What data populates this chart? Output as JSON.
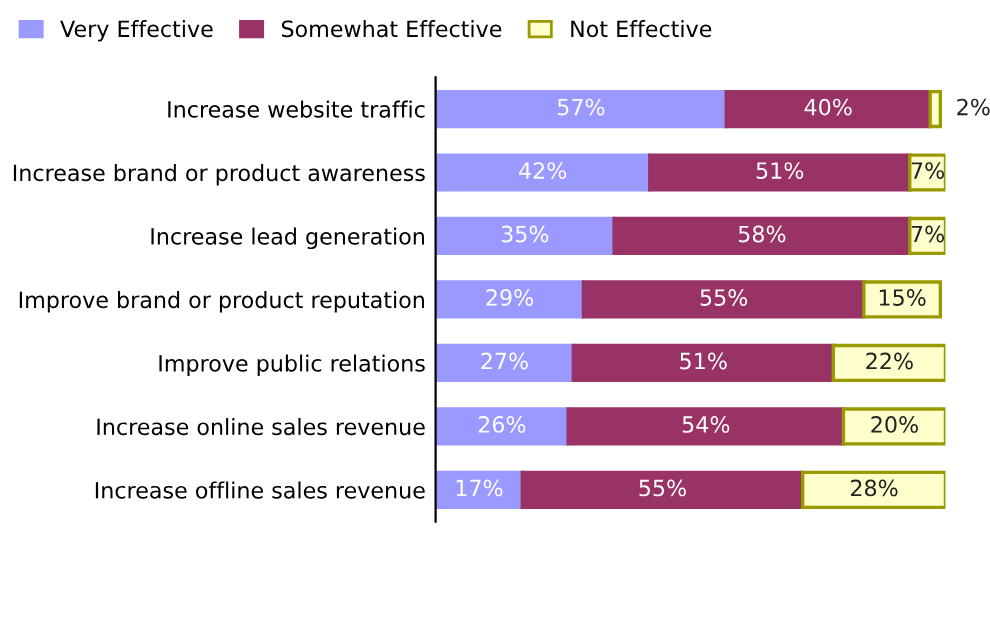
{
  "chart_data": {
    "type": "bar",
    "orientation": "horizontal",
    "stacked": true,
    "legend": "top left",
    "grid": false,
    "tick_labels": "y",
    "categories": [
      "Increase website traffic",
      "Increase brand or product awareness",
      "Increase lead generation",
      "Improve brand or product reputation",
      "Improve public relations",
      "Increase online sales revenue",
      "Increase offline sales revenue"
    ],
    "series": [
      {
        "name": "Very Effective",
        "color": "#9999ff",
        "values": [
          57,
          42,
          35,
          29,
          27,
          26,
          17
        ],
        "value_labels": [
          "57%",
          "42%",
          "35%",
          "29%",
          "27%",
          "26%",
          "17%"
        ]
      },
      {
        "name": "Somewhat Effective",
        "color": "#993366",
        "values": [
          40,
          51,
          58,
          55,
          51,
          54,
          55
        ],
        "value_labels": [
          "40%",
          "51%",
          "58%",
          "55%",
          "51%",
          "54%",
          "55%"
        ]
      },
      {
        "name": "Not Effective",
        "color": "#ffffcc",
        "values": [
          2,
          7,
          7,
          15,
          22,
          20,
          28
        ],
        "value_labels": [
          "2%",
          "7%",
          "7%",
          "15%",
          "22%",
          "20%",
          "28%"
        ]
      }
    ]
  }
}
